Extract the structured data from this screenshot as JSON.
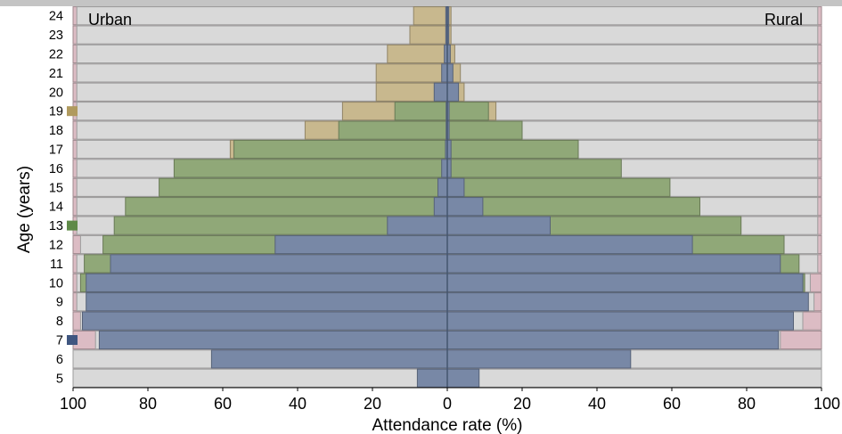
{
  "chart_data": {
    "type": "bar",
    "orientation": "horizontal-population-pyramid",
    "title": "",
    "xlabel": "Attendance rate (%)",
    "ylabel": "Age (years)",
    "side_labels": {
      "left": "Urban",
      "right": "Rural"
    },
    "xlim": [
      -100,
      100
    ],
    "x_ticks": [
      100,
      80,
      60,
      40,
      20,
      0,
      20,
      40,
      60,
      80,
      100
    ],
    "ages": [
      5,
      6,
      7,
      8,
      9,
      10,
      11,
      12,
      13,
      14,
      15,
      16,
      17,
      18,
      19,
      20,
      21,
      22,
      23,
      24
    ],
    "series": [
      {
        "name": "",
        "color": "#dcbcc4",
        "urban": [
          100,
          100,
          100,
          100,
          100,
          100,
          100,
          100,
          100,
          100,
          100,
          100,
          100,
          100,
          100,
          100,
          100,
          100,
          100,
          100
        ],
        "rural": [
          100,
          100,
          100,
          100,
          100,
          100,
          100,
          100,
          100,
          100,
          100,
          100,
          100,
          100,
          100,
          100,
          100,
          100,
          100,
          100
        ]
      },
      {
        "name": "",
        "color": "#d9d9d9",
        "urban": [
          100,
          100,
          94,
          98,
          99,
          99,
          99,
          98,
          99,
          99,
          99,
          99,
          99,
          99,
          99,
          99,
          99,
          99,
          99,
          99
        ],
        "rural": [
          100,
          100,
          89,
          95,
          98,
          97,
          99,
          99,
          99,
          99,
          99,
          99,
          99,
          99,
          99,
          99,
          99,
          99,
          99,
          99
        ]
      },
      {
        "name": "",
        "color": "#c8b88e",
        "urban": [
          0,
          0,
          0,
          0,
          0,
          0,
          0,
          0,
          0,
          0,
          0,
          0,
          58,
          38,
          28,
          19,
          19,
          16,
          10,
          9
        ],
        "rural": [
          0,
          0,
          0,
          0,
          0,
          0,
          0,
          0,
          0,
          0,
          0,
          0,
          35,
          20,
          13,
          4.5,
          3.5,
          2,
          1,
          1
        ]
      },
      {
        "name": "",
        "color": "#90a878",
        "urban": [
          0,
          0,
          0,
          0,
          0,
          98,
          97,
          92,
          89,
          86,
          77,
          73,
          57,
          29,
          14,
          0,
          0,
          0,
          0,
          0
        ],
        "rural": [
          0,
          0,
          0,
          0,
          0,
          95.5,
          94,
          90,
          78.5,
          67.5,
          59.5,
          46.5,
          35,
          20,
          11,
          0,
          0,
          0,
          0,
          0
        ]
      },
      {
        "name": "",
        "color": "#7888a6",
        "urban": [
          8,
          63,
          93,
          97.5,
          96.5,
          96.5,
          90,
          46,
          16,
          3.5,
          2.5,
          1.5,
          0.5,
          0.3,
          0.3,
          3.5,
          1.5,
          0.8,
          0.4,
          0.4
        ],
        "rural": [
          8.5,
          49,
          88.5,
          92.5,
          96.5,
          95,
          89,
          65.5,
          27.5,
          9.5,
          4.5,
          1,
          1,
          0.5,
          0.5,
          3,
          1.5,
          0.8,
          0.4,
          0.4
        ]
      }
    ],
    "legend_markers": [
      {
        "age": 7,
        "color": "#3f5680"
      },
      {
        "age": 13,
        "color": "#5f8a48"
      },
      {
        "age": 19,
        "color": "#b09a5e"
      }
    ],
    "grid": false
  }
}
